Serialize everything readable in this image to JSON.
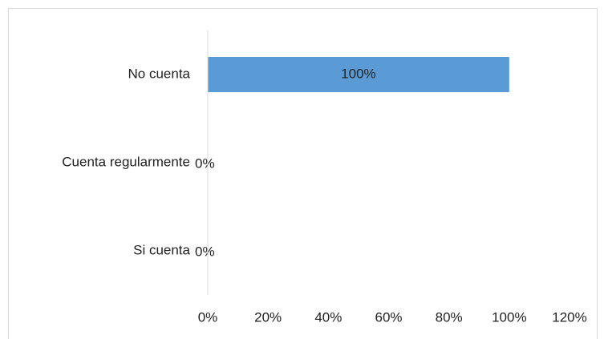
{
  "chart_data": {
    "type": "bar",
    "orientation": "horizontal",
    "categories": [
      "No cuenta",
      "Cuenta regularmente",
      "Si cuenta"
    ],
    "values": [
      100,
      0,
      0
    ],
    "value_labels": [
      "100%",
      "0%",
      "0%"
    ],
    "color": "#5b9bd5",
    "xlim": [
      0,
      120
    ],
    "xticks": [
      {
        "value": 0,
        "label": "0%"
      },
      {
        "value": 20,
        "label": "20%"
      },
      {
        "value": 40,
        "label": "40%"
      },
      {
        "value": 60,
        "label": "60%"
      },
      {
        "value": 80,
        "label": "80%"
      },
      {
        "value": 100,
        "label": "100%"
      },
      {
        "value": 120,
        "label": "120%"
      }
    ],
    "grid": false
  }
}
